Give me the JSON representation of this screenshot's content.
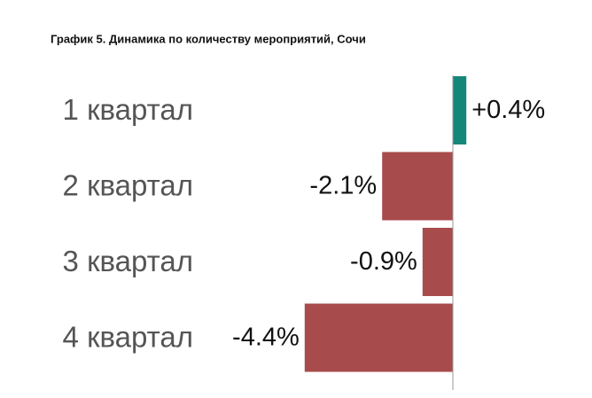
{
  "chart_data": {
    "type": "bar",
    "orientation": "horizontal",
    "title": "График 5. Динамика по количеству мероприятий, Сочи",
    "categories": [
      "1 квартал",
      "2 квартал",
      "3 квартал",
      "4 квартал"
    ],
    "values": [
      0.4,
      -2.1,
      -0.9,
      -4.4
    ],
    "value_labels": [
      "+0.4%",
      "-2.1%",
      "-0.9%",
      "-4.4%"
    ],
    "colors": [
      "#14877a",
      "#a84b4c",
      "#a84b4c",
      "#a84b4c"
    ],
    "xlim": [
      -5,
      1
    ]
  }
}
